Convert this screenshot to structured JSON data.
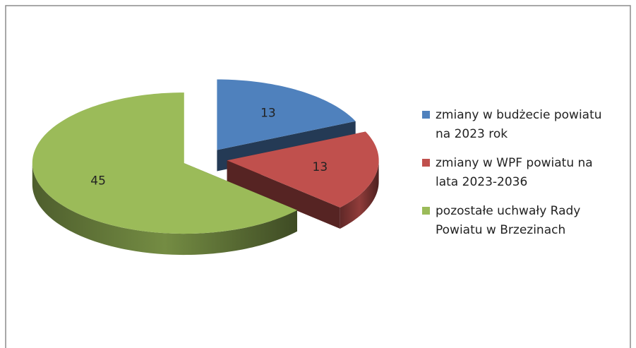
{
  "chart_data": {
    "type": "pie3d",
    "categories": [
      "zmiany w budżecie powiatu na 2023 rok",
      "zmiany w WPF powiatu na lata 2023-2036",
      "pozostałe uchwały Rady Powiatu w Brzezinach"
    ],
    "values": [
      13,
      13,
      45
    ],
    "colors": [
      "#4f81bd",
      "#c0504d",
      "#9bbb59"
    ],
    "legend": "right"
  }
}
